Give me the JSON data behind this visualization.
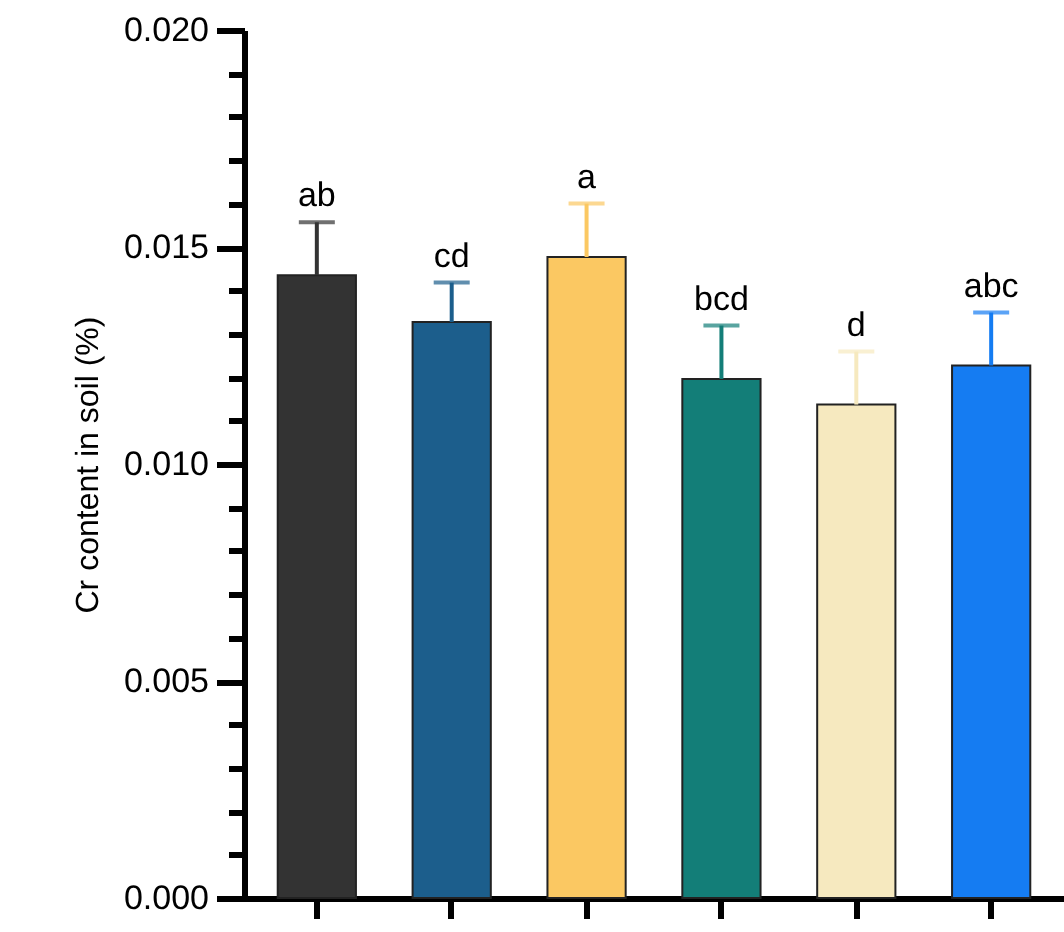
{
  "chart_data": {
    "type": "bar",
    "ylabel": "Cr content in soil (%)",
    "categories": [
      null,
      null,
      null,
      null,
      null,
      null
    ],
    "values": [
      0.01435,
      0.01327,
      0.01477,
      0.01196,
      0.01137,
      0.01227
    ],
    "colors": [
      "#333333",
      "#1c5e8c",
      "#fbc862",
      "#137e78",
      "#f6e9bf",
      "#157cf2"
    ],
    "errors": [
      [
        0.01435,
        0.01557
      ],
      [
        0.01327,
        0.01418
      ],
      [
        0.01477,
        0.016
      ],
      [
        0.01196,
        0.01319
      ],
      [
        0.01137,
        0.01259
      ],
      [
        0.01227,
        0.01349
      ]
    ],
    "ylim": [
      0,
      0.02
    ],
    "yticks": [
      "0.000",
      {
        "value": 0.001,
        "label": null
      },
      {
        "value": 0.002,
        "label": null
      },
      {
        "value": 0.003,
        "label": null
      },
      {
        "value": 0.004,
        "label": null
      },
      {
        "value": 0.005,
        "label": "0.005"
      },
      {
        "value": 0.006,
        "label": null
      },
      {
        "value": 0.007,
        "label": null
      },
      {
        "value": 0.008,
        "label": null
      },
      {
        "value": 0.009,
        "label": null
      },
      {
        "value": 0.01,
        "label": "0.010"
      },
      {
        "value": 0.011,
        "label": null
      },
      {
        "value": 0.012,
        "label": null
      },
      {
        "value": 0.013,
        "label": null
      },
      {
        "value": 0.014,
        "label": null
      },
      {
        "value": 0.015,
        "label": "0.015"
      },
      {
        "value": 0.016,
        "label": null
      },
      {
        "value": 0.017,
        "label": null
      },
      {
        "value": 0.018,
        "label": null
      },
      {
        "value": 0.019,
        "label": null
      },
      {
        "value": 0.02,
        "label": "0.020"
      }
    ],
    "annotations": [
      "ab",
      "cd",
      "a",
      "bcd",
      "d",
      "abc"
    ],
    "tick_labels": "y",
    "grid": false
  }
}
